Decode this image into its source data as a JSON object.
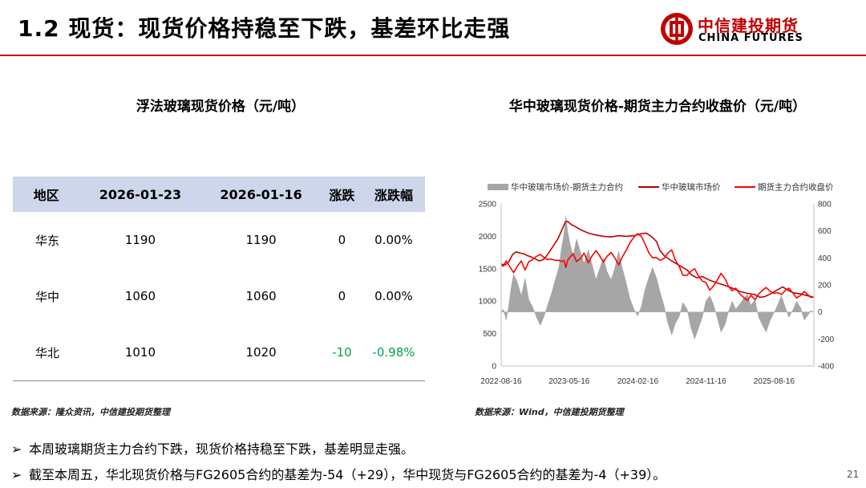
{
  "header": {
    "title": "1.2 现货：现货价格持稳至下跌，基差环比走强",
    "logo_cn": "中信建投期货",
    "logo_en": "CHINA FUTURES",
    "accent_color": "#c00000"
  },
  "table_panel": {
    "title": "浮法玻璃现货价格（元/吨）",
    "columns": [
      "地区",
      "2026-01-23",
      "2026-01-16",
      "涨跌",
      "涨跌幅"
    ],
    "rows": [
      {
        "region": "华东",
        "current": "1190",
        "previous": "1190",
        "change": "0",
        "pct": "0.00%"
      },
      {
        "region": "华中",
        "current": "1060",
        "previous": "1060",
        "change": "0",
        "pct": "0.00%"
      },
      {
        "region": "华北",
        "current": "1010",
        "previous": "1020",
        "change": "-10",
        "pct": "-0.98%"
      }
    ],
    "header_bg": "#cdd6ea",
    "source": "数据来源：隆众资讯，中信建投期货整理"
  },
  "chart_panel": {
    "title": "华中玻璃现货价格-期货主力合约收盘价（元/吨）",
    "source": "数据来源：Wind，中信建投期货整理"
  },
  "chart_data": {
    "type": "line",
    "legend": [
      "华中玻璃市场价-期货主力合约",
      "华中玻璃市场价",
      "期货主力合约收盘价"
    ],
    "legend_position": "top",
    "x_ticks": [
      "2022-08-16",
      "2023-05-16",
      "2024-02-16",
      "2024-11-16",
      "2025-08-16"
    ],
    "x_range": [
      "2022-08-16",
      "2026-01-23"
    ],
    "y_left_ticks": [
      0,
      500,
      1000,
      1500,
      2000,
      2500
    ],
    "y_left_range": [
      0,
      2500
    ],
    "y_right_ticks": [
      -400,
      -200,
      0,
      200,
      400,
      600,
      800
    ],
    "y_right_range": [
      -400,
      800
    ],
    "grid": false,
    "series": [
      {
        "name": "华中玻璃市场价-期货主力合约",
        "kind": "area",
        "axis": "right",
        "color": "#a6a6a6",
        "points": [
          [
            "2022-08-16",
            0
          ],
          [
            "2022-08-25",
            20
          ],
          [
            "2022-09-05",
            -60
          ],
          [
            "2022-09-15",
            40
          ],
          [
            "2022-09-25",
            180
          ],
          [
            "2022-10-05",
            280
          ],
          [
            "2022-10-20",
            220
          ],
          [
            "2022-11-05",
            120
          ],
          [
            "2022-11-20",
            250
          ],
          [
            "2022-12-05",
            90
          ],
          [
            "2022-12-20",
            40
          ],
          [
            "2023-01-05",
            -40
          ],
          [
            "2023-01-20",
            -100
          ],
          [
            "2023-02-05",
            -30
          ],
          [
            "2023-02-20",
            60
          ],
          [
            "2023-03-05",
            130
          ],
          [
            "2023-03-20",
            230
          ],
          [
            "2023-04-05",
            330
          ],
          [
            "2023-04-15",
            470
          ],
          [
            "2023-04-25",
            570
          ],
          [
            "2023-05-03",
            710
          ],
          [
            "2023-05-10",
            600
          ],
          [
            "2023-05-20",
            500
          ],
          [
            "2023-06-01",
            420
          ],
          [
            "2023-06-15",
            540
          ],
          [
            "2023-07-01",
            440
          ],
          [
            "2023-07-15",
            360
          ],
          [
            "2023-08-01",
            460
          ],
          [
            "2023-08-15",
            360
          ],
          [
            "2023-09-01",
            240
          ],
          [
            "2023-09-15",
            320
          ],
          [
            "2023-10-01",
            400
          ],
          [
            "2023-10-15",
            300
          ],
          [
            "2023-11-01",
            240
          ],
          [
            "2023-11-15",
            320
          ],
          [
            "2023-12-01",
            450
          ],
          [
            "2023-12-15",
            330
          ],
          [
            "2024-01-01",
            210
          ],
          [
            "2024-01-15",
            100
          ],
          [
            "2024-02-01",
            20
          ],
          [
            "2024-02-15",
            -30
          ],
          [
            "2024-03-01",
            40
          ],
          [
            "2024-03-15",
            160
          ],
          [
            "2024-04-01",
            260
          ],
          [
            "2024-04-15",
            330
          ],
          [
            "2024-05-01",
            250
          ],
          [
            "2024-05-15",
            150
          ],
          [
            "2024-06-01",
            40
          ],
          [
            "2024-06-15",
            -80
          ],
          [
            "2024-07-01",
            -170
          ],
          [
            "2024-07-15",
            -90
          ],
          [
            "2024-08-01",
            -30
          ],
          [
            "2024-08-15",
            70
          ],
          [
            "2024-09-01",
            20
          ],
          [
            "2024-09-15",
            -110
          ],
          [
            "2024-10-01",
            -200
          ],
          [
            "2024-10-15",
            -130
          ],
          [
            "2024-11-01",
            -40
          ],
          [
            "2024-11-15",
            80
          ],
          [
            "2024-12-01",
            120
          ],
          [
            "2024-12-15",
            60
          ],
          [
            "2025-01-01",
            -50
          ],
          [
            "2025-01-15",
            -150
          ],
          [
            "2025-02-01",
            -90
          ],
          [
            "2025-02-15",
            10
          ],
          [
            "2025-03-01",
            80
          ],
          [
            "2025-03-15",
            20
          ],
          [
            "2025-04-01",
            60
          ],
          [
            "2025-04-15",
            100
          ],
          [
            "2025-05-01",
            130
          ],
          [
            "2025-05-15",
            50
          ],
          [
            "2025-06-01",
            90
          ],
          [
            "2025-06-15",
            -40
          ],
          [
            "2025-07-01",
            -100
          ],
          [
            "2025-07-15",
            -150
          ],
          [
            "2025-08-01",
            -60
          ],
          [
            "2025-08-15",
            -10
          ],
          [
            "2025-09-01",
            60
          ],
          [
            "2025-09-15",
            120
          ],
          [
            "2025-10-01",
            30
          ],
          [
            "2025-10-15",
            -40
          ],
          [
            "2025-11-01",
            20
          ],
          [
            "2025-11-15",
            80
          ],
          [
            "2025-12-01",
            30
          ],
          [
            "2025-12-15",
            -60
          ],
          [
            "2026-01-01",
            -20
          ],
          [
            "2026-01-10",
            10
          ],
          [
            "2026-01-23",
            -4
          ]
        ]
      },
      {
        "name": "华中玻璃市场价",
        "kind": "line",
        "axis": "left",
        "color": "#c00000",
        "points": [
          [
            "2022-08-16",
            1570
          ],
          [
            "2022-09-01",
            1560
          ],
          [
            "2022-09-15",
            1600
          ],
          [
            "2022-10-01",
            1720
          ],
          [
            "2022-10-15",
            1760
          ],
          [
            "2022-11-01",
            1740
          ],
          [
            "2022-11-15",
            1730
          ],
          [
            "2022-12-01",
            1700
          ],
          [
            "2022-12-15",
            1680
          ],
          [
            "2023-01-01",
            1650
          ],
          [
            "2023-01-15",
            1620
          ],
          [
            "2023-02-01",
            1640
          ],
          [
            "2023-02-15",
            1700
          ],
          [
            "2023-03-01",
            1780
          ],
          [
            "2023-03-15",
            1860
          ],
          [
            "2023-04-01",
            1960
          ],
          [
            "2023-04-15",
            2080
          ],
          [
            "2023-05-01",
            2220
          ],
          [
            "2023-05-10",
            2230
          ],
          [
            "2023-05-25",
            2180
          ],
          [
            "2023-06-10",
            2150
          ],
          [
            "2023-07-01",
            2100
          ],
          [
            "2023-08-01",
            2050
          ],
          [
            "2023-09-01",
            2020
          ],
          [
            "2023-10-01",
            2000
          ],
          [
            "2023-11-01",
            1990
          ],
          [
            "2023-12-01",
            2010
          ],
          [
            "2024-01-01",
            2000
          ],
          [
            "2024-02-01",
            2010
          ],
          [
            "2024-03-01",
            2040
          ],
          [
            "2024-03-20",
            2050
          ],
          [
            "2024-04-10",
            2000
          ],
          [
            "2024-05-01",
            1920
          ],
          [
            "2024-05-15",
            1780
          ],
          [
            "2024-06-01",
            1700
          ],
          [
            "2024-07-01",
            1620
          ],
          [
            "2024-08-01",
            1550
          ],
          [
            "2024-09-01",
            1480
          ],
          [
            "2024-09-20",
            1400
          ],
          [
            "2024-10-10",
            1360
          ],
          [
            "2024-11-01",
            1380
          ],
          [
            "2024-12-01",
            1320
          ],
          [
            "2025-01-01",
            1280
          ],
          [
            "2025-02-01",
            1240
          ],
          [
            "2025-03-01",
            1200
          ],
          [
            "2025-04-01",
            1150
          ],
          [
            "2025-05-01",
            1120
          ],
          [
            "2025-06-01",
            1100
          ],
          [
            "2025-06-20",
            1060
          ],
          [
            "2025-07-10",
            1070
          ],
          [
            "2025-08-01",
            1110
          ],
          [
            "2025-09-01",
            1180
          ],
          [
            "2025-09-20",
            1220
          ],
          [
            "2025-10-10",
            1170
          ],
          [
            "2025-11-01",
            1130
          ],
          [
            "2025-12-01",
            1110
          ],
          [
            "2026-01-01",
            1080
          ],
          [
            "2026-01-23",
            1060
          ]
        ]
      },
      {
        "name": "期货主力合约收盘价",
        "kind": "line",
        "axis": "left",
        "color": "#ff0000",
        "points": [
          [
            "2022-08-16",
            1560
          ],
          [
            "2022-08-25",
            1540
          ],
          [
            "2022-09-05",
            1620
          ],
          [
            "2022-09-15",
            1560
          ],
          [
            "2022-09-25",
            1500
          ],
          [
            "2022-10-05",
            1440
          ],
          [
            "2022-10-20",
            1540
          ],
          [
            "2022-11-05",
            1620
          ],
          [
            "2022-11-20",
            1480
          ],
          [
            "2022-12-05",
            1610
          ],
          [
            "2022-12-20",
            1640
          ],
          [
            "2023-01-05",
            1690
          ],
          [
            "2023-01-20",
            1720
          ],
          [
            "2023-02-05",
            1670
          ],
          [
            "2023-02-20",
            1640
          ],
          [
            "2023-03-05",
            1650
          ],
          [
            "2023-03-20",
            1630
          ],
          [
            "2023-04-05",
            1630
          ],
          [
            "2023-04-15",
            1610
          ],
          [
            "2023-04-25",
            1630
          ],
          [
            "2023-05-03",
            1520
          ],
          [
            "2023-05-10",
            1630
          ],
          [
            "2023-05-20",
            1680
          ],
          [
            "2023-06-01",
            1730
          ],
          [
            "2023-06-15",
            1610
          ],
          [
            "2023-07-01",
            1660
          ],
          [
            "2023-07-15",
            1740
          ],
          [
            "2023-08-01",
            1590
          ],
          [
            "2023-08-15",
            1690
          ],
          [
            "2023-09-01",
            1780
          ],
          [
            "2023-09-15",
            1700
          ],
          [
            "2023-10-01",
            1600
          ],
          [
            "2023-10-15",
            1690
          ],
          [
            "2023-11-01",
            1750
          ],
          [
            "2023-11-15",
            1670
          ],
          [
            "2023-12-01",
            1560
          ],
          [
            "2023-12-15",
            1680
          ],
          [
            "2024-01-01",
            1790
          ],
          [
            "2024-01-15",
            1900
          ],
          [
            "2024-02-01",
            1990
          ],
          [
            "2024-02-15",
            2040
          ],
          [
            "2024-03-01",
            2000
          ],
          [
            "2024-03-15",
            1890
          ],
          [
            "2024-04-01",
            1740
          ],
          [
            "2024-04-15",
            1670
          ],
          [
            "2024-05-01",
            1670
          ],
          [
            "2024-05-15",
            1630
          ],
          [
            "2024-06-01",
            1660
          ],
          [
            "2024-06-15",
            1740
          ],
          [
            "2024-07-01",
            1790
          ],
          [
            "2024-07-15",
            1640
          ],
          [
            "2024-08-01",
            1530
          ],
          [
            "2024-08-15",
            1400
          ],
          [
            "2024-09-01",
            1400
          ],
          [
            "2024-09-15",
            1460
          ],
          [
            "2024-10-01",
            1500
          ],
          [
            "2024-10-15",
            1400
          ],
          [
            "2024-11-01",
            1310
          ],
          [
            "2024-11-15",
            1290
          ],
          [
            "2024-12-01",
            1170
          ],
          [
            "2024-12-15",
            1230
          ],
          [
            "2025-01-01",
            1330
          ],
          [
            "2025-01-15",
            1430
          ],
          [
            "2025-02-01",
            1340
          ],
          [
            "2025-02-15",
            1220
          ],
          [
            "2025-03-01",
            1160
          ],
          [
            "2025-03-15",
            1200
          ],
          [
            "2025-04-01",
            1110
          ],
          [
            "2025-04-15",
            1060
          ],
          [
            "2025-05-01",
            1010
          ],
          [
            "2025-05-15",
            1090
          ],
          [
            "2025-06-01",
            1020
          ],
          [
            "2025-06-15",
            1110
          ],
          [
            "2025-07-01",
            1170
          ],
          [
            "2025-07-15",
            1210
          ],
          [
            "2025-08-01",
            1150
          ],
          [
            "2025-08-15",
            1120
          ],
          [
            "2025-09-01",
            1130
          ],
          [
            "2025-09-15",
            1100
          ],
          [
            "2025-10-01",
            1170
          ],
          [
            "2025-10-15",
            1200
          ],
          [
            "2025-11-01",
            1120
          ],
          [
            "2025-11-15",
            1050
          ],
          [
            "2025-12-01",
            1090
          ],
          [
            "2025-12-15",
            1150
          ],
          [
            "2026-01-01",
            1090
          ],
          [
            "2026-01-10",
            1060
          ],
          [
            "2026-01-23",
            1064
          ]
        ]
      }
    ]
  },
  "bullets": [
    "本周玻璃期货主力合约下跌，现货价格持稳至下跌，基差明显走强。",
    "截至本周五，华北现货价格与FG2605合约的基差为-54（+29），华中现货与FG2605合约的基差为-4（+39）。"
  ],
  "bullet_marker": "➢",
  "page_number": "21"
}
